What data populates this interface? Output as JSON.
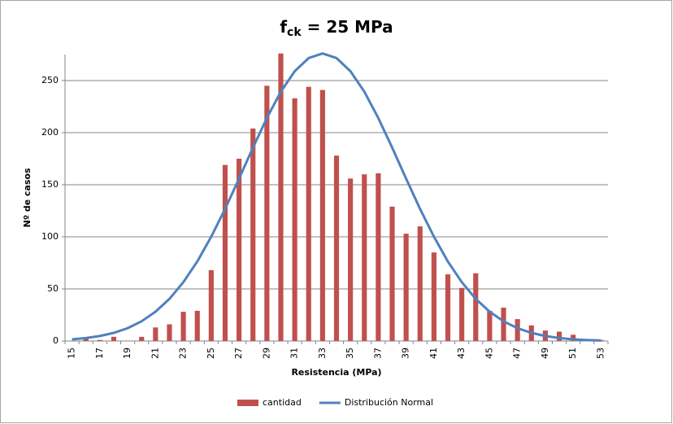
{
  "chart_data": {
    "type": "bar_line",
    "title": "f",
    "title_subscript": "ck",
    "title_rest": " = 25 MPa",
    "x_label": "Resistencia (MPa)",
    "y_label": "Nº de casos",
    "categories": [
      15,
      null,
      17,
      null,
      19,
      null,
      21,
      null,
      23,
      null,
      25,
      null,
      27,
      null,
      29,
      null,
      31,
      null,
      33,
      null,
      35,
      null,
      37,
      null,
      39,
      null,
      41,
      null,
      43,
      null,
      45,
      null,
      47,
      null,
      49,
      null,
      51,
      null,
      53
    ],
    "series": [
      {
        "name": "cantidad",
        "type": "bar",
        "color": "#c0504d",
        "values": [
          0,
          2,
          1,
          4,
          0,
          4,
          13,
          16,
          28,
          29,
          68,
          169,
          175,
          204,
          245,
          276,
          233,
          244,
          241,
          178,
          156,
          160,
          161,
          129,
          103,
          110,
          85,
          64,
          51,
          65,
          29,
          32,
          21,
          15,
          10,
          9,
          6,
          2,
          1
        ]
      },
      {
        "name": "Distribución Normal",
        "type": "line",
        "color": "#4f81bd",
        "values": [
          1.6,
          2.8,
          4.8,
          7.8,
          12.3,
          18.9,
          28.1,
          40.4,
          56.5,
          76.3,
          100.1,
          126.8,
          155.9,
          185.6,
          214.1,
          239.3,
          259.0,
          271.6,
          276,
          271.6,
          259.0,
          239.3,
          214.1,
          185.6,
          155.9,
          126.8,
          100.1,
          76.3,
          56.5,
          40.4,
          28.1,
          18.9,
          12.3,
          7.8,
          4.8,
          2.8,
          1.6,
          0.9,
          0.5
        ]
      }
    ],
    "ylim": [
      0,
      275
    ],
    "yticks": [
      0,
      50,
      100,
      150,
      200,
      250
    ],
    "grid": true,
    "legend": "bottom"
  }
}
